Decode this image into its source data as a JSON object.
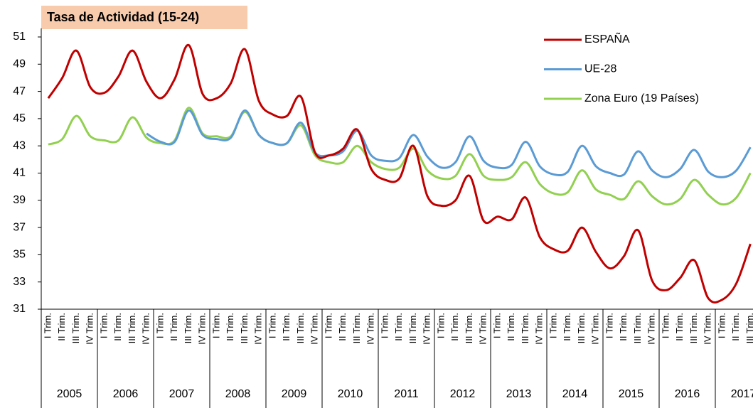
{
  "chart_data": {
    "type": "line",
    "title": "Tasa de Actividad (15-24)",
    "categories": [
      "I Trim.",
      "II Trim.",
      "III Trim.",
      "IV Trim.",
      "I Trim.",
      "II Trim.",
      "III Trim.",
      "IV Trim.",
      "I Trim.",
      "II Trim.",
      "III Trim.",
      "IV Trim.",
      "I Trim.",
      "II Trim.",
      "III Trim.",
      "IV Trim.",
      "I Trim.",
      "II Trim.",
      "III Trim.",
      "IV Trim.",
      "I Trim.",
      "II Trim.",
      "III Trim.",
      "IV Trim.",
      "I Trim.",
      "II Trim.",
      "III Trim.",
      "IV Trim.",
      "I Trim.",
      "II Trim.",
      "III Trim.",
      "IV Trim.",
      "I Trim.",
      "II Trim.",
      "III Trim.",
      "IV Trim.",
      "I Trim.",
      "II Trim.",
      "III Trim.",
      "IV Trim.",
      "I Trim.",
      "II Trim.",
      "III Trim.",
      "IV Trim.",
      "I Trim.",
      "II Trim.",
      "III Trim.",
      "IV Trim.",
      "I Trim.",
      "II Trim.",
      "III Trim."
    ],
    "years": [
      "2005",
      "2006",
      "2007",
      "2008",
      "2009",
      "2010",
      "2011",
      "2012",
      "2013",
      "2014",
      "2015",
      "2016",
      "2017"
    ],
    "series": [
      {
        "name": "ESPAÑA",
        "color": "#c00000",
        "values": [
          46.5,
          48.0,
          50.0,
          47.3,
          46.9,
          48.1,
          50.0,
          47.7,
          46.5,
          47.9,
          50.4,
          46.8,
          46.5,
          47.6,
          50.1,
          46.3,
          45.3,
          45.2,
          46.6,
          42.5,
          42.3,
          42.8,
          44.2,
          41.3,
          40.5,
          40.6,
          43.0,
          39.3,
          38.6,
          39.0,
          40.8,
          37.5,
          37.8,
          37.6,
          39.2,
          36.3,
          35.4,
          35.3,
          37.0,
          35.2,
          34.0,
          34.9,
          36.8,
          33.1,
          32.4,
          33.3,
          34.6,
          31.8,
          31.7,
          32.9,
          35.8
        ]
      },
      {
        "name": "UE-28",
        "color": "#5b9bd5",
        "values": [
          null,
          null,
          null,
          null,
          null,
          null,
          null,
          43.9,
          43.3,
          43.3,
          45.6,
          43.8,
          43.5,
          43.6,
          45.6,
          43.8,
          43.2,
          43.2,
          44.7,
          42.5,
          42.3,
          42.6,
          44.1,
          42.3,
          41.9,
          42.1,
          43.8,
          42.2,
          41.4,
          41.8,
          43.7,
          41.9,
          41.4,
          41.6,
          43.3,
          41.5,
          40.9,
          41.1,
          43.0,
          41.5,
          41.0,
          40.9,
          42.6,
          41.2,
          40.7,
          41.3,
          42.7,
          41.1,
          40.7,
          41.2,
          42.9
        ]
      },
      {
        "name": "Zona Euro (19 Países)",
        "color": "#92d050",
        "values": [
          43.1,
          43.5,
          45.2,
          43.7,
          43.4,
          43.4,
          45.1,
          43.6,
          43.2,
          43.4,
          45.8,
          43.9,
          43.7,
          43.7,
          45.5,
          43.8,
          43.2,
          43.2,
          44.5,
          42.3,
          41.8,
          41.8,
          43.0,
          41.8,
          41.3,
          41.4,
          42.8,
          41.2,
          40.6,
          40.8,
          42.4,
          40.8,
          40.5,
          40.7,
          41.8,
          40.2,
          39.5,
          39.6,
          41.2,
          39.8,
          39.4,
          39.1,
          40.4,
          39.3,
          38.7,
          39.1,
          40.5,
          39.4,
          38.7,
          39.2,
          41.0
        ]
      }
    ],
    "ylim": [
      31,
      51
    ],
    "yticks": [
      31,
      33,
      35,
      37,
      39,
      41,
      43,
      45,
      47,
      49,
      51
    ]
  }
}
